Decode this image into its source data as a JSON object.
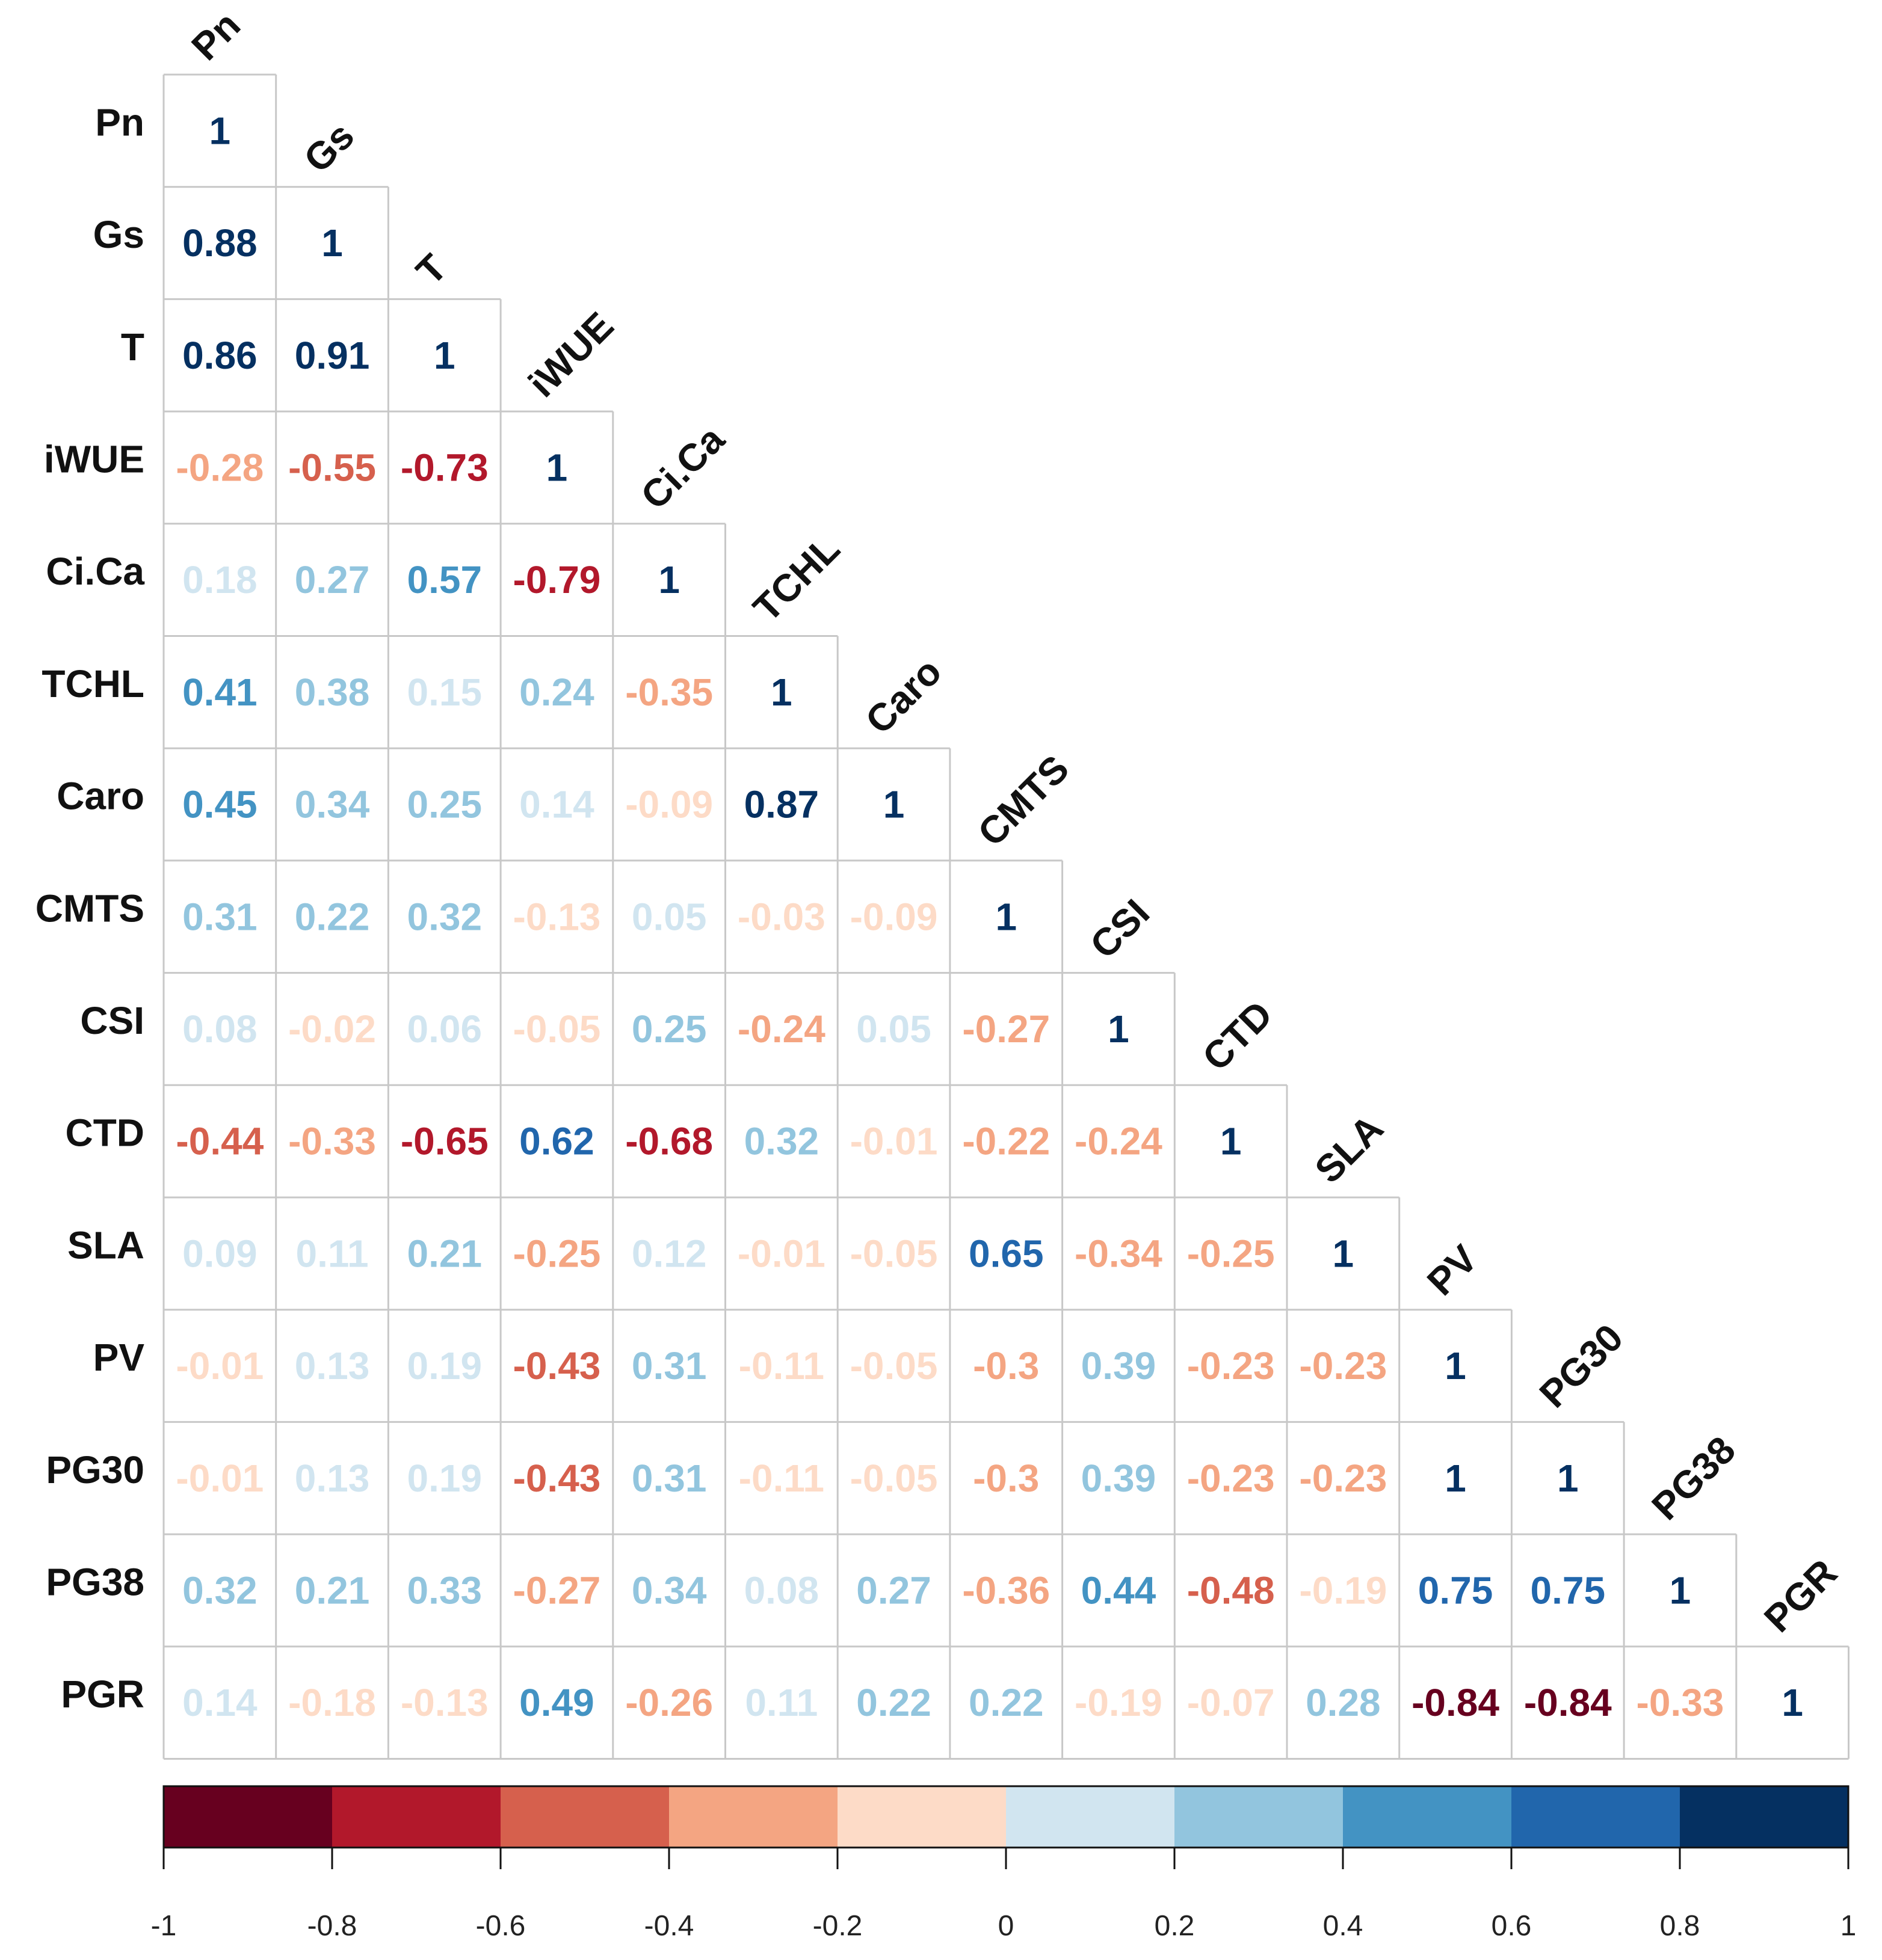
{
  "chart_data": {
    "type": "heatmap",
    "title": "",
    "variables": [
      "Pn",
      "Gs",
      "T",
      "iWUE",
      "Ci.Ca",
      "TCHL",
      "Caro",
      "CMTS",
      "CSI",
      "CTD",
      "SLA",
      "PV",
      "PG30",
      "PG38",
      "PGR"
    ],
    "matrix_lower": [
      [
        "1"
      ],
      [
        "0.88",
        "1"
      ],
      [
        "0.86",
        "0.91",
        "1"
      ],
      [
        "-0.28",
        "-0.55",
        "-0.73",
        "1"
      ],
      [
        "0.18",
        "0.27",
        "0.57",
        "-0.79",
        "1"
      ],
      [
        "0.41",
        "0.38",
        "0.15",
        "0.24",
        "-0.35",
        "1"
      ],
      [
        "0.45",
        "0.34",
        "0.25",
        "0.14",
        "-0.09",
        "0.87",
        "1"
      ],
      [
        "0.31",
        "0.22",
        "0.32",
        "-0.13",
        "0.05",
        "-0.03",
        "-0.09",
        "1"
      ],
      [
        "0.08",
        "-0.02",
        "0.06",
        "-0.05",
        "0.25",
        "-0.24",
        "0.05",
        "-0.27",
        "1"
      ],
      [
        "-0.44",
        "-0.33",
        "-0.65",
        "0.62",
        "-0.68",
        "0.32",
        "-0.01",
        "-0.22",
        "-0.24",
        "1"
      ],
      [
        "0.09",
        "0.11",
        "0.21",
        "-0.25",
        "0.12",
        "-0.01",
        "-0.05",
        "0.65",
        "-0.34",
        "-0.25",
        "1"
      ],
      [
        "-0.01",
        "0.13",
        "0.19",
        "-0.43",
        "0.31",
        "-0.11",
        "-0.05",
        "-0.3",
        "0.39",
        "-0.23",
        "-0.23",
        "1"
      ],
      [
        "-0.01",
        "0.13",
        "0.19",
        "-0.43",
        "0.31",
        "-0.11",
        "-0.05",
        "-0.3",
        "0.39",
        "-0.23",
        "-0.23",
        "1",
        "1"
      ],
      [
        "0.32",
        "0.21",
        "0.33",
        "-0.27",
        "0.34",
        "0.08",
        "0.27",
        "-0.36",
        "0.44",
        "-0.48",
        "-0.19",
        "0.75",
        "0.75",
        "1"
      ],
      [
        "0.14",
        "-0.18",
        "-0.13",
        "0.49",
        "-0.26",
        "0.11",
        "0.22",
        "0.22",
        "-0.19",
        "-0.07",
        "0.28",
        "-0.84",
        "-0.84",
        "-0.33",
        "1"
      ]
    ],
    "colorbar": {
      "range": [
        -1,
        1
      ],
      "bins": 10,
      "colors": [
        "#67001f",
        "#b2182b",
        "#d6604d",
        "#f4a582",
        "#fddbc7",
        "#d1e5f0",
        "#92c5de",
        "#4393c3",
        "#2166ac",
        "#053061"
      ],
      "ticks": [
        "-1",
        "-0.8",
        "-0.6",
        "-0.4",
        "-0.2",
        "0",
        "0.2",
        "0.4",
        "0.6",
        "0.8",
        "1"
      ]
    }
  }
}
